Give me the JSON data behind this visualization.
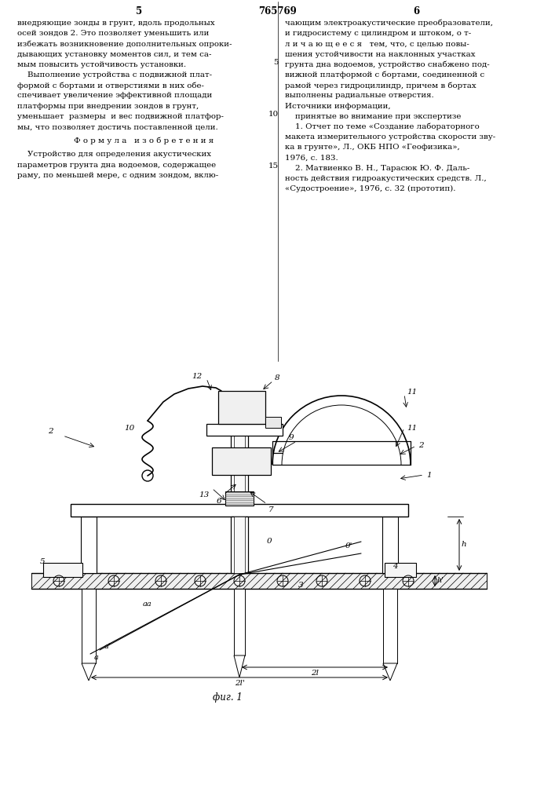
{
  "bg_color": "#ffffff",
  "lc": "#000000",
  "tc": "#000000",
  "page_num_left": "5",
  "page_num_center": "765769",
  "page_num_right": "6",
  "left_col_lines": [
    "внедряющие зонды в грунт, вдоль продольных",
    "осей зондов 2. Это позволяет уменьшить или",
    "избежать возникновение дополнительных опроки-",
    "дывающих установку моментов сил, и тем са-",
    "мым повысить устойчивость установки.",
    "    Выполнение устройства с подвижной плат-",
    "формой с бортами и отверстиями в них обе-",
    "спечивает увеличение эффективной площади",
    "платформы при внедрении зондов в грунт,",
    "уменьшает  размеры  и вес подвижной платфор-",
    "мы, что позволяет достичь поставленной цели.",
    "Ф о р м у л а   и з о б р е т е н и я",
    "    Устройство для определения акустических",
    "параметров грунта дна водоемов, содержащее",
    "раму, по меньшей мере, с одним зондом, вклю-"
  ],
  "right_col_lines": [
    "чающим электроакустические преобразователи,",
    "и гидросистему с цилиндром и штоком, о т-",
    "л и ч а ю щ е е с я   тем, что, с целью повы-",
    "шения устойчивости на наклонных участках",
    "грунта дна водоемов, устройство снабжено под-",
    "вижной платформой с бортами, соединенной с",
    "рамой через гидроцилиндр, причем в бортах",
    "выполнены радиальные отверстия.",
    "Источники информации,",
    "    принятые во внимание при экспертизе",
    "    1. Отчет по теме «Создание лабораторного",
    "макета измерительного устройства скорости зву-",
    "ка в грунте», Л., ОКБ НПО «Геофизика»,",
    "1976, с. 183.",
    "    2. Матвиенко В. Н., Тарасюк Ю. Ф. Даль-",
    "ность действия гидроакустических средств. Л.,",
    "«Судостроение», 1976, с. 32 (прототип)."
  ],
  "right_line_numbers": [
    null,
    null,
    null,
    null,
    "5",
    null,
    null,
    null,
    null,
    "10",
    null,
    null,
    null,
    null,
    "15",
    null,
    null
  ],
  "fig_caption": "фиг. 1"
}
